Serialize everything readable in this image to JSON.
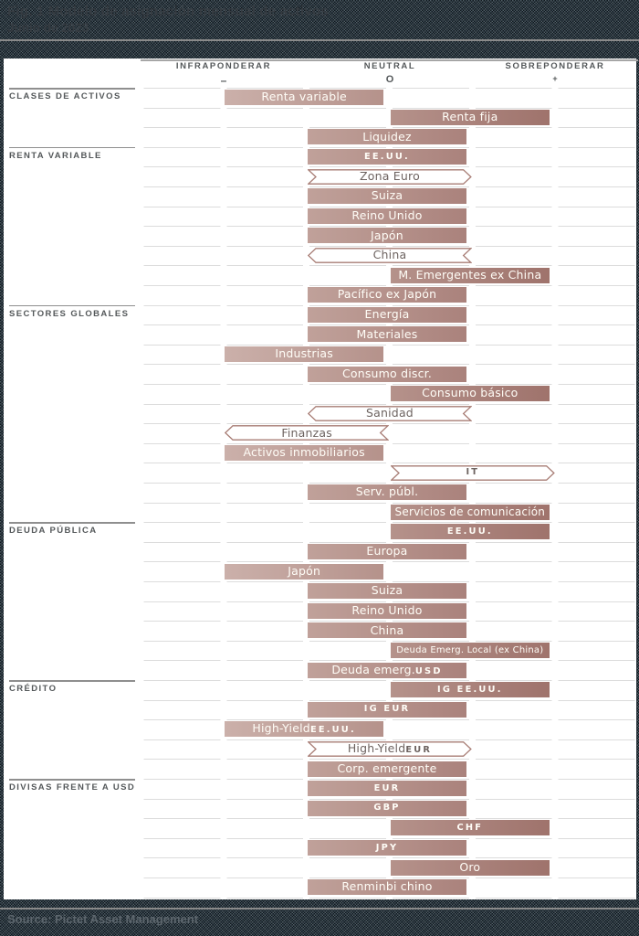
{
  "chart_data": {
    "type": "bar",
    "variant": "range-allocation",
    "title": "Fig. 1 Modelo de asignación mensual de activos",
    "subtitle": "Junio de 2023",
    "source": "Source: Pictet Asset Management",
    "xlim": [
      -3,
      3
    ],
    "grid": "dashed-rows",
    "axis": [
      {
        "label": "INFRAPONDERAR",
        "symbol": "–"
      },
      {
        "label": "NEUTRAL",
        "symbol": "O"
      },
      {
        "label": "SOBREPONDERAR",
        "symbol": "+"
      }
    ],
    "sections": [
      {
        "label": "CLASES DE ACTIVOS",
        "rows": [
          {
            "segments": [
              {
                "text": "Renta variable",
                "caps": false
              }
            ],
            "range": [
              -2,
              0
            ],
            "style": "solid"
          },
          {
            "segments": [
              {
                "text": "Renta fija",
                "caps": false
              }
            ],
            "range": [
              0,
              2
            ],
            "style": "solid"
          },
          {
            "segments": [
              {
                "text": "Liquidez",
                "caps": false
              }
            ],
            "range": [
              -1,
              1
            ],
            "style": "solid"
          }
        ]
      },
      {
        "label": "RENTA VARIABLE",
        "rows": [
          {
            "segments": [
              {
                "text": "EE.UU.",
                "caps": true
              }
            ],
            "range": [
              -1,
              1
            ],
            "style": "solid"
          },
          {
            "segments": [
              {
                "text": "Zona Euro",
                "caps": false
              }
            ],
            "range": [
              -1,
              1
            ],
            "style": "arrow-right"
          },
          {
            "segments": [
              {
                "text": "Suiza",
                "caps": false
              }
            ],
            "range": [
              -1,
              1
            ],
            "style": "solid"
          },
          {
            "segments": [
              {
                "text": "Reino Unido",
                "caps": false
              }
            ],
            "range": [
              -1,
              1
            ],
            "style": "solid"
          },
          {
            "segments": [
              {
                "text": "Japón",
                "caps": false
              }
            ],
            "range": [
              -1,
              1
            ],
            "style": "solid"
          },
          {
            "segments": [
              {
                "text": "China",
                "caps": false
              }
            ],
            "range": [
              -1,
              1
            ],
            "style": "arrow-left"
          },
          {
            "segments": [
              {
                "text": "M. Emergentes ex China",
                "caps": false
              }
            ],
            "range": [
              0,
              2
            ],
            "style": "solid"
          },
          {
            "segments": [
              {
                "text": "Pacífico ex Japón",
                "caps": false
              }
            ],
            "range": [
              -1,
              1
            ],
            "style": "solid"
          }
        ]
      },
      {
        "label": "SECTORES GLOBALES",
        "rows": [
          {
            "segments": [
              {
                "text": "Energía",
                "caps": false
              }
            ],
            "range": [
              -1,
              1
            ],
            "style": "solid"
          },
          {
            "segments": [
              {
                "text": "Materiales",
                "caps": false
              }
            ],
            "range": [
              -1,
              1
            ],
            "style": "solid"
          },
          {
            "segments": [
              {
                "text": "Industrias",
                "caps": false
              }
            ],
            "range": [
              -2,
              0
            ],
            "style": "solid"
          },
          {
            "segments": [
              {
                "text": "Consumo discr.",
                "caps": false
              }
            ],
            "range": [
              -1,
              1
            ],
            "style": "solid"
          },
          {
            "segments": [
              {
                "text": "Consumo básico",
                "caps": false
              }
            ],
            "range": [
              0,
              2
            ],
            "style": "solid"
          },
          {
            "segments": [
              {
                "text": "Sanidad",
                "caps": false
              }
            ],
            "range": [
              -1,
              1
            ],
            "style": "arrow-left"
          },
          {
            "segments": [
              {
                "text": "Finanzas",
                "caps": false
              }
            ],
            "range": [
              -2,
              0
            ],
            "style": "arrow-left"
          },
          {
            "segments": [
              {
                "text": "Activos inmobiliarios",
                "caps": false
              }
            ],
            "range": [
              -2,
              0
            ],
            "style": "solid"
          },
          {
            "segments": [
              {
                "text": "IT",
                "caps": true
              }
            ],
            "range": [
              0,
              2
            ],
            "style": "arrow-right"
          },
          {
            "segments": [
              {
                "text": "Serv. públ.",
                "caps": false
              }
            ],
            "range": [
              -1,
              1
            ],
            "style": "solid"
          },
          {
            "segments": [
              {
                "text": "Servicios de comunicación",
                "caps": false
              }
            ],
            "range": [
              0,
              2
            ],
            "style": "solid"
          }
        ]
      },
      {
        "label": "DEUDA PÚBLICA",
        "rows": [
          {
            "segments": [
              {
                "text": "EE.UU.",
                "caps": true
              }
            ],
            "range": [
              0,
              2
            ],
            "style": "solid"
          },
          {
            "segments": [
              {
                "text": "Europa",
                "caps": false
              }
            ],
            "range": [
              -1,
              1
            ],
            "style": "solid"
          },
          {
            "segments": [
              {
                "text": "Japón",
                "caps": false
              }
            ],
            "range": [
              -2,
              0
            ],
            "style": "solid"
          },
          {
            "segments": [
              {
                "text": "Suiza",
                "caps": false
              }
            ],
            "range": [
              -1,
              1
            ],
            "style": "solid"
          },
          {
            "segments": [
              {
                "text": "Reino Unido",
                "caps": false
              }
            ],
            "range": [
              -1,
              1
            ],
            "style": "solid"
          },
          {
            "segments": [
              {
                "text": "China",
                "caps": false
              }
            ],
            "range": [
              -1,
              1
            ],
            "style": "solid"
          },
          {
            "segments": [
              {
                "text": "Deuda Emerg. Local (ex China)",
                "caps": false
              }
            ],
            "range": [
              0,
              2
            ],
            "style": "solid"
          },
          {
            "segments": [
              {
                "text": "Deuda emerg. ",
                "caps": false
              },
              {
                "text": "USD",
                "caps": true
              }
            ],
            "range": [
              -1,
              1
            ],
            "style": "solid"
          }
        ]
      },
      {
        "label": "CRÉDITO",
        "rows": [
          {
            "segments": [
              {
                "text": "IG EE.UU.",
                "caps": true
              }
            ],
            "range": [
              0,
              2
            ],
            "style": "solid"
          },
          {
            "segments": [
              {
                "text": "IG EUR",
                "caps": true
              }
            ],
            "range": [
              -1,
              1
            ],
            "style": "solid"
          },
          {
            "segments": [
              {
                "text": "High-Yield ",
                "caps": false
              },
              {
                "text": "EE.UU.",
                "caps": true
              }
            ],
            "range": [
              -2,
              0
            ],
            "style": "solid"
          },
          {
            "segments": [
              {
                "text": "High-Yield ",
                "caps": false
              },
              {
                "text": "EUR",
                "caps": true
              }
            ],
            "range": [
              -1,
              1
            ],
            "style": "arrow-right"
          },
          {
            "segments": [
              {
                "text": "Corp. emergente",
                "caps": false
              }
            ],
            "range": [
              -1,
              1
            ],
            "style": "solid"
          }
        ]
      },
      {
        "label": "DIVISAS FRENTE A USD",
        "rows": [
          {
            "segments": [
              {
                "text": "EUR",
                "caps": true
              }
            ],
            "range": [
              -1,
              1
            ],
            "style": "solid"
          },
          {
            "segments": [
              {
                "text": "GBP",
                "caps": true
              }
            ],
            "range": [
              -1,
              1
            ],
            "style": "solid"
          },
          {
            "segments": [
              {
                "text": "CHF",
                "caps": true
              }
            ],
            "range": [
              0,
              2
            ],
            "style": "solid"
          },
          {
            "segments": [
              {
                "text": "JPY",
                "caps": true
              }
            ],
            "range": [
              -1,
              1
            ],
            "style": "solid"
          },
          {
            "segments": [
              {
                "text": "Oro",
                "caps": false
              }
            ],
            "range": [
              0,
              2
            ],
            "style": "solid"
          },
          {
            "segments": [
              {
                "text": "Renminbi chino",
                "caps": false
              }
            ],
            "range": [
              -1,
              1
            ],
            "style": "solid"
          }
        ]
      }
    ]
  },
  "palette": {
    "bar_gradient_left": "#d6bfb9",
    "bar_gradient_right": "#94645d",
    "bar_text": "#fffdf7",
    "outline_border": "#a87d75",
    "outline_text": "#6d6360",
    "grid_line": "#dcdcdc",
    "rule_dark": "#8f8f8f",
    "header_text": "#54585a",
    "band_bg": "#3e4d57",
    "band_rule": "#8a8a8a",
    "title_text": "#363c42",
    "source_text": "#5d666d"
  }
}
